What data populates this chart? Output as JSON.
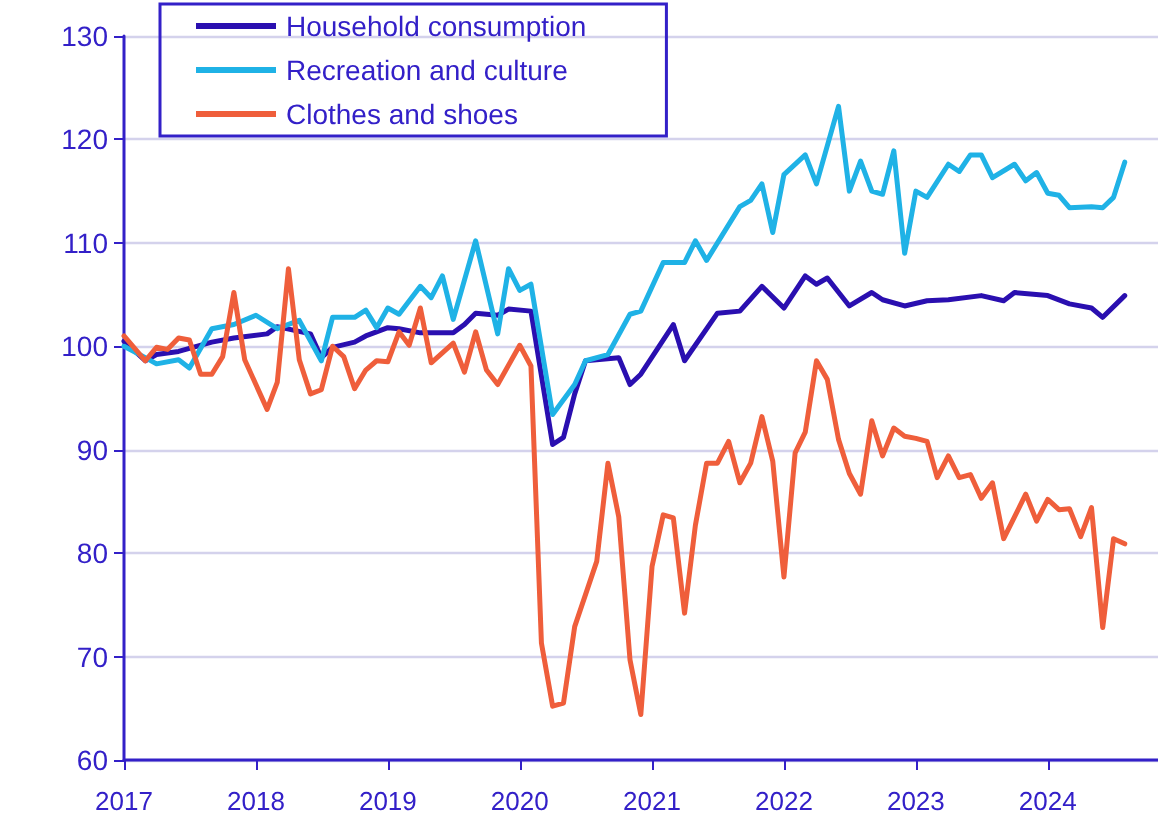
{
  "chart_data": {
    "type": "line",
    "series": [
      {
        "name": "Household consumption",
        "color": "#2a0fb0",
        "x": [
          "2017-01",
          "2017-03",
          "2017-04",
          "2017-06",
          "2017-09",
          "2017-11",
          "2018-02",
          "2018-03",
          "2018-06",
          "2018-07",
          "2018-08",
          "2018-10",
          "2018-11",
          "2019-01",
          "2019-02",
          "2019-04",
          "2019-07",
          "2019-08",
          "2019-09",
          "2019-11",
          "2019-12",
          "2020-02",
          "2020-04",
          "2020-05",
          "2020-06",
          "2020-07",
          "2020-10",
          "2020-11",
          "2020-12",
          "2021-03",
          "2021-04",
          "2021-07",
          "2021-09",
          "2021-11",
          "2022-01",
          "2022-03",
          "2022-04",
          "2022-05",
          "2022-07",
          "2022-09",
          "2022-10",
          "2022-12",
          "2023-02",
          "2023-04",
          "2023-07",
          "2023-09",
          "2023-10",
          "2024-01",
          "2024-03",
          "2024-05",
          "2024-06",
          "2024-08"
        ],
        "values": [
          100.5,
          98.6,
          99.2,
          99.5,
          100.4,
          100.8,
          101.2,
          101.9,
          101.2,
          98.9,
          99.9,
          100.4,
          101,
          101.8,
          101.7,
          101.3,
          101.3,
          102.1,
          103.2,
          103,
          103.6,
          103.4,
          90.5,
          91.2,
          95.4,
          98.6,
          98.9,
          96.3,
          97.3,
          102.1,
          98.6,
          103.2,
          103.4,
          105.8,
          103.7,
          106.8,
          106,
          106.6,
          103.9,
          105.2,
          104.5,
          103.9,
          104.4,
          104.5,
          104.9,
          104.4,
          105.2,
          104.9,
          104.1,
          103.7,
          102.8,
          104.9
        ]
      },
      {
        "name": "Recreation and culture",
        "color": "#1fb2e6",
        "x": [
          "2017-01",
          "2017-03",
          "2017-04",
          "2017-06",
          "2017-07",
          "2017-09",
          "2017-11",
          "2018-01",
          "2018-03",
          "2018-05",
          "2018-07",
          "2018-08",
          "2018-10",
          "2018-11",
          "2018-12",
          "2019-01",
          "2019-02",
          "2019-04",
          "2019-05",
          "2019-06",
          "2019-07",
          "2019-09",
          "2019-11",
          "2019-12",
          "2020-01",
          "2020-02",
          "2020-04",
          "2020-06",
          "2020-07",
          "2020-09",
          "2020-11",
          "2020-12",
          "2021-02",
          "2021-04",
          "2021-05",
          "2021-06",
          "2021-09",
          "2021-10",
          "2021-11",
          "2021-12",
          "2022-01",
          "2022-03",
          "2022-04",
          "2022-06",
          "2022-07",
          "2022-08",
          "2022-09",
          "2022-10",
          "2022-11",
          "2022-12",
          "2023-01",
          "2023-02",
          "2023-04",
          "2023-05",
          "2023-06",
          "2023-07",
          "2023-08",
          "2023-10",
          "2023-11",
          "2023-12",
          "2024-01",
          "2024-02",
          "2024-03",
          "2024-05",
          "2024-06",
          "2024-07",
          "2024-08"
        ],
        "values": [
          100,
          98.9,
          98.3,
          98.7,
          97.9,
          101.7,
          102.1,
          103,
          101.7,
          102.5,
          98.6,
          102.8,
          102.8,
          103.5,
          101.8,
          103.7,
          103.1,
          105.8,
          104.7,
          106.8,
          102.6,
          110.2,
          101.2,
          107.5,
          105.4,
          106,
          93.4,
          96.3,
          98.6,
          99.2,
          103.1,
          103.4,
          108.1,
          108.1,
          110.2,
          108.3,
          113.5,
          114.1,
          115.7,
          111,
          116.6,
          118.5,
          115.7,
          123.2,
          115,
          117.9,
          115,
          114.7,
          118.9,
          109,
          115,
          114.4,
          117.6,
          116.9,
          118.5,
          118.5,
          116.3,
          117.6,
          116,
          116.8,
          114.8,
          114.6,
          113.4,
          113.5,
          113.4,
          114.4,
          117.8
        ]
      },
      {
        "name": "Clothes and shoes",
        "color": "#ef5e3b",
        "x": [
          "2017-01",
          "2017-03",
          "2017-04",
          "2017-05",
          "2017-06",
          "2017-07",
          "2017-08",
          "2017-09",
          "2017-10",
          "2017-11",
          "2017-12",
          "2018-02",
          "2018-03",
          "2018-04",
          "2018-05",
          "2018-06",
          "2018-07",
          "2018-08",
          "2018-09",
          "2018-10",
          "2018-11",
          "2018-12",
          "2019-01",
          "2019-02",
          "2019-03",
          "2019-04",
          "2019-05",
          "2019-07",
          "2019-08",
          "2019-09",
          "2019-10",
          "2019-11",
          "2020-01",
          "2020-02",
          "2020-03",
          "2020-04",
          "2020-05",
          "2020-06",
          "2020-08",
          "2020-09",
          "2020-10",
          "2020-11",
          "2020-12",
          "2021-01",
          "2021-02",
          "2021-03",
          "2021-04",
          "2021-05",
          "2021-06",
          "2021-07",
          "2021-08",
          "2021-09",
          "2021-10",
          "2021-11",
          "2021-12",
          "2022-01",
          "2022-02",
          "2022-03",
          "2022-04",
          "2022-05",
          "2022-06",
          "2022-07",
          "2022-08",
          "2022-09",
          "2022-10",
          "2022-11",
          "2022-12",
          "2023-01",
          "2023-02",
          "2023-03",
          "2023-04",
          "2023-05",
          "2023-06",
          "2023-07",
          "2023-08",
          "2023-09",
          "2023-10",
          "2023-11",
          "2023-12",
          "2024-01",
          "2024-02",
          "2024-03",
          "2024-04",
          "2024-05",
          "2024-06",
          "2024-07",
          "2024-08"
        ],
        "values": [
          101,
          98.6,
          99.9,
          99.7,
          100.8,
          100.6,
          97.3,
          97.3,
          99,
          105.2,
          98.7,
          93.9,
          96.5,
          107.5,
          98.7,
          95.4,
          95.8,
          100,
          99,
          95.9,
          97.7,
          98.6,
          98.5,
          101.4,
          100.1,
          103.7,
          98.4,
          100.3,
          97.5,
          101.4,
          97.7,
          96.3,
          100.1,
          98.1,
          71.3,
          65.2,
          65.5,
          72.9,
          79.2,
          88.7,
          83.5,
          69.7,
          64.4,
          78.7,
          83.7,
          83.4,
          74.2,
          82.7,
          88.7,
          88.7,
          90.8,
          86.8,
          88.7,
          93.2,
          88.9,
          77.7,
          89.7,
          91.7,
          98.6,
          96.8,
          91,
          87.7,
          85.7,
          92.8,
          89.4,
          92.1,
          91.3,
          91.1,
          90.8,
          87.3,
          89.4,
          87.3,
          87.6,
          85.3,
          86.8,
          81.4,
          83.5,
          85.7,
          83.1,
          85.2,
          84.2,
          84.3,
          81.6,
          84.4,
          72.8,
          81.4,
          80.9
        ]
      }
    ],
    "xlim": [
      "2017-01",
      "2024-11"
    ],
    "xticks": [
      {
        "value": "2017-01",
        "label": "2017"
      },
      {
        "value": "2018-01",
        "label": "2018"
      },
      {
        "value": "2019-01",
        "label": "2019"
      },
      {
        "value": "2020-01",
        "label": "2020"
      },
      {
        "value": "2021-01",
        "label": "2021"
      },
      {
        "value": "2022-01",
        "label": "2022"
      },
      {
        "value": "2023-01",
        "label": "2023"
      },
      {
        "value": "2024-01",
        "label": "2024"
      }
    ],
    "ylim": [
      60,
      130
    ],
    "yticks": [
      60,
      70,
      80,
      90,
      100,
      110,
      120,
      130
    ],
    "grid": "y",
    "legend": "top left"
  }
}
